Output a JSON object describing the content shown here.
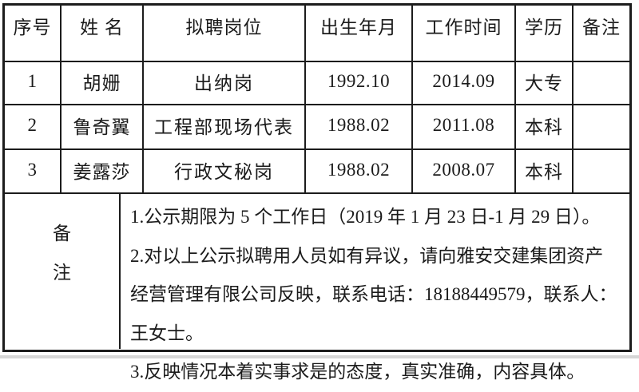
{
  "table": {
    "headers": {
      "no": "序号",
      "name": "姓 名",
      "position": "拟聘岗位",
      "birth": "出生年月",
      "work_start": "工作时间",
      "education": "学历",
      "remark": "备注"
    },
    "rows": [
      {
        "no": "1",
        "name": "胡姗",
        "position": "出纳岗",
        "birth": "1992.10",
        "work_start": "2014.09",
        "education": "大专",
        "remark": ""
      },
      {
        "no": "2",
        "name": "鲁奇翼",
        "position": "工程部现场代表",
        "birth": "1988.02",
        "work_start": "2011.08",
        "education": "本科",
        "remark": ""
      },
      {
        "no": "3",
        "name": "姜露莎",
        "position": "行政文秘岗",
        "birth": "1988.02",
        "work_start": "2008.07",
        "education": "本科",
        "remark": ""
      }
    ],
    "remarks": {
      "label_char_top": "备",
      "label_char_bottom": "注",
      "notes": [
        "1.公示期限为 5 个工作日（2019 年 1 月 23 日-1 月 29 日）。",
        "2.对以上公示拟聘用人员如有异议，请向雅安交建集团资产经营管理有限公司反映，联系电话：18188449579，联系人：王女士。",
        "3.反映情况本着实事求是的态度，真实准确，内容具体。"
      ]
    }
  },
  "colors": {
    "border": "#1c1c1c",
    "text": "#1b1b1b",
    "background": "#ffffff",
    "bottom_strip": "#d6d6d6"
  }
}
